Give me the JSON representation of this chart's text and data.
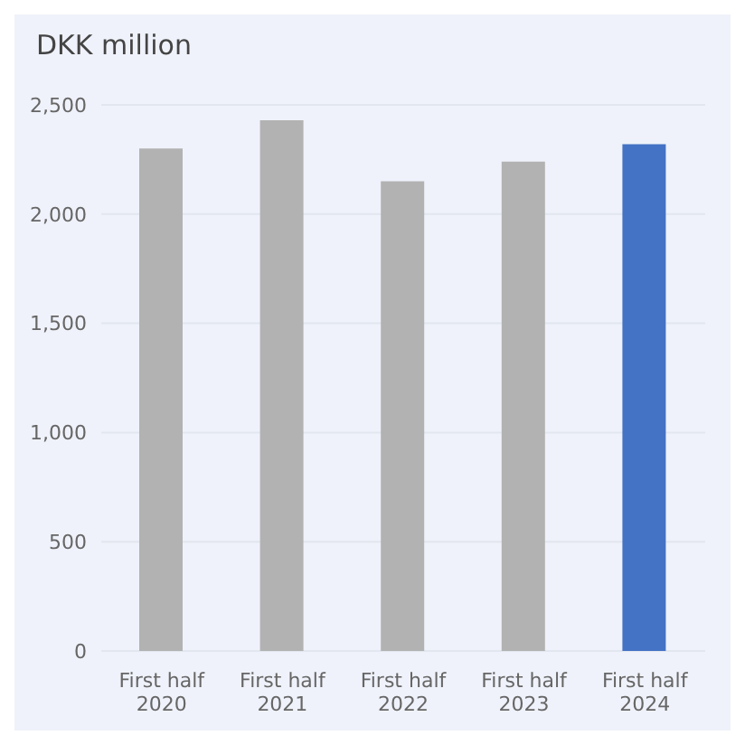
{
  "chart_data": {
    "type": "bar",
    "ylabel": "DKK million",
    "categories": [
      "First half 2020",
      "First half 2021",
      "First half 2022",
      "First half 2023",
      "First half 2024"
    ],
    "values": [
      2300,
      2430,
      2150,
      2240,
      2320
    ],
    "colors": [
      "#b2b2b2",
      "#b2b2b2",
      "#b2b2b2",
      "#b2b2b2",
      "#4472c4"
    ],
    "ylim": [
      0,
      2500
    ],
    "yticks": [
      {
        "value": 0,
        "label": "0"
      },
      {
        "value": 500,
        "label": "500"
      },
      {
        "value": 1000,
        "label": "1,000"
      },
      {
        "value": 1500,
        "label": "1,500"
      },
      {
        "value": 2000,
        "label": "2,000"
      },
      {
        "value": 2500,
        "label": "2,500"
      }
    ],
    "grid": "y"
  }
}
